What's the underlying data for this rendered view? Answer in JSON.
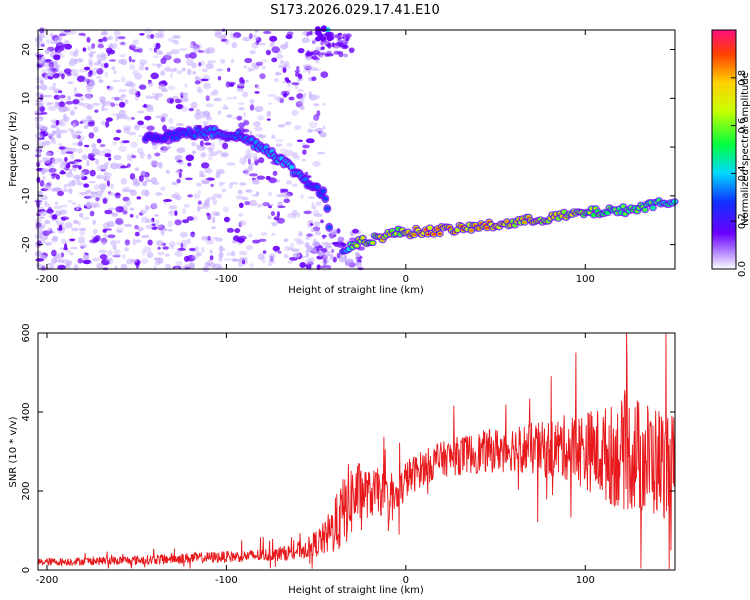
{
  "title": "S173.2026.029.17.41.E10",
  "colors": {
    "snr_line": "#e8191c",
    "ridge_dot_low": "#6a00ff",
    "ridge_dot_high": "#e8191c"
  },
  "chart_data": [
    {
      "type": "heatmap",
      "name": "spectrogram",
      "xlabel": "Height of straight line (km)",
      "ylabel": "Frequency (Hz)",
      "xlim": [
        -205,
        150
      ],
      "ylim": [
        -25,
        24
      ],
      "xticks": [
        -200,
        -100,
        0,
        100
      ],
      "yticks": [
        -20,
        -10,
        0,
        10,
        20
      ],
      "colorbar": {
        "label": "Normalized spectral amplitude",
        "range": [
          0,
          1
        ],
        "ticks": [
          0.0,
          0.2,
          0.4,
          0.6,
          0.8
        ]
      },
      "ridge": {
        "x": [
          -150,
          -130,
          -115,
          -105,
          -95,
          -85,
          -75,
          -65,
          -55,
          -45,
          -40,
          -35,
          -30,
          -25,
          -20,
          -15,
          -10,
          -5,
          0,
          10,
          20,
          30,
          40,
          50,
          60,
          70,
          80,
          90,
          100,
          110,
          120,
          130,
          140,
          150
        ],
        "y": [
          2,
          2.5,
          3,
          3,
          2.5,
          1,
          -1,
          -4,
          -7,
          -10,
          -24,
          -21,
          -20,
          -19.5,
          -19,
          -18.5,
          -18,
          -17.5,
          -17.5,
          -17.3,
          -17,
          -16.8,
          -16.3,
          -16,
          -15.5,
          -15,
          -14.5,
          -14,
          -13.5,
          -13.2,
          -13,
          -12.5,
          -11.5,
          -11
        ],
        "amplitude": [
          0.2,
          0.25,
          0.3,
          0.35,
          0.3,
          0.35,
          0.4,
          0.45,
          0.3,
          0.25,
          0.3,
          0.3,
          0.6,
          0.8,
          0.7,
          0.8,
          0.85,
          0.7,
          0.8,
          0.95,
          0.9,
          0.9,
          0.85,
          0.95,
          0.8,
          0.85,
          0.8,
          0.8,
          0.7,
          0.65,
          0.6,
          0.6,
          0.55,
          0.5
        ]
      }
    },
    {
      "type": "line",
      "name": "snr",
      "xlabel": "Height of straight line (km)",
      "ylabel": "SNR (10 * v/v)",
      "xlim": [
        -205,
        150
      ],
      "ylim": [
        0,
        600
      ],
      "xticks": [
        -200,
        -100,
        0,
        100
      ],
      "yticks": [
        0,
        200,
        400,
        600
      ],
      "envelope": {
        "x": [
          -205,
          -180,
          -150,
          -120,
          -90,
          -70,
          -55,
          -45,
          -38,
          -32,
          -28,
          -24,
          -20,
          -15,
          -10,
          -5,
          0,
          10,
          20,
          30,
          45,
          60,
          75,
          90,
          105,
          115,
          125,
          135,
          145,
          150
        ],
        "y": [
          20,
          22,
          25,
          30,
          35,
          40,
          55,
          80,
          120,
          170,
          190,
          200,
          190,
          200,
          175,
          180,
          230,
          260,
          280,
          290,
          300,
          310,
          305,
          310,
          300,
          290,
          295,
          280,
          270,
          265
        ],
        "spread": [
          10,
          10,
          12,
          14,
          15,
          18,
          25,
          45,
          80,
          100,
          90,
          70,
          60,
          60,
          55,
          55,
          50,
          45,
          45,
          50,
          55,
          60,
          70,
          85,
          110,
          130,
          150,
          150,
          140,
          130
        ]
      }
    }
  ]
}
